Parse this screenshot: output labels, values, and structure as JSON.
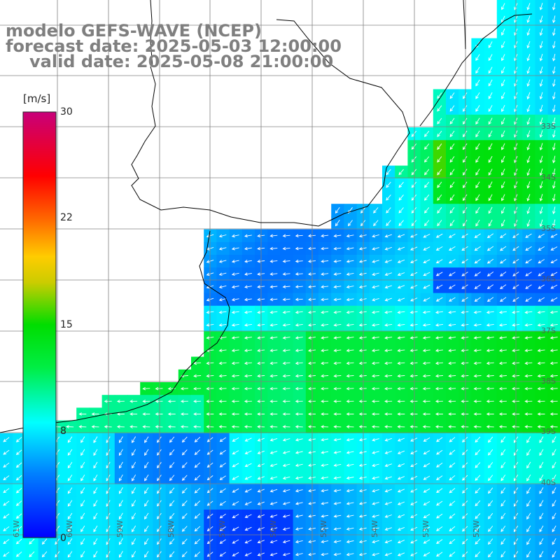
{
  "title": {
    "line1": "modelo GEFS-WAVE (NCEP)",
    "line2": "forecast date: 2025-05-03 12:00:00",
    "line3": "valid date: 2025-05-08 21:00:00"
  },
  "colorbar": {
    "unit": "[m/s]",
    "ticks": [
      "30",
      "22",
      "15",
      "8",
      "0"
    ],
    "colors": [
      "#0000ff",
      "#00aaff",
      "#00ffff",
      "#00dd00",
      "#ffff00",
      "#ff8800",
      "#ff0000",
      "#c8007a"
    ]
  },
  "lat_labels": [
    "33S",
    "34S",
    "35S",
    "36S",
    "37S",
    "38S",
    "39S",
    "40S"
  ],
  "lon_labels": [
    "61W",
    "60W",
    "59W",
    "58W",
    "57W",
    "56W",
    "55W",
    "54W",
    "53W",
    "52W"
  ],
  "colors": {
    "land": "#ffffff",
    "coast": "#000000",
    "grid": "#808080",
    "arrow": "#ffffff"
  }
}
